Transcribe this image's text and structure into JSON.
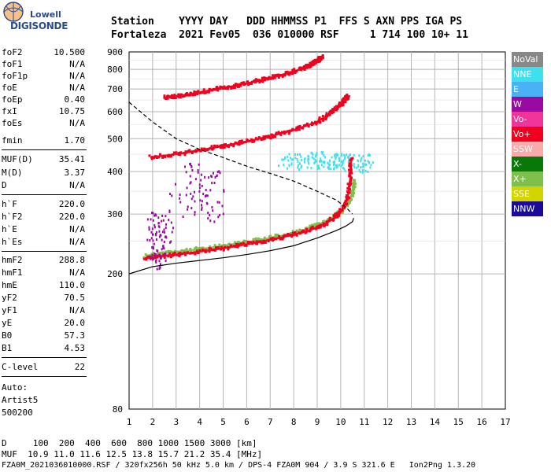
{
  "logo": {
    "line1": "Lowell",
    "line2": "DIGISONDE"
  },
  "header": {
    "line1": "Station    YYYY DAY   DDD HHMMSS P1  FFS S AXN PPS IGA PS",
    "line2": "Fortaleza  2021 Fev05  036 010000 RSF     1 714 100 10+ 11"
  },
  "params": {
    "group1": [
      {
        "k": "foF2",
        "v": "10.500"
      },
      {
        "k": "foF1",
        "v": "N/A"
      },
      {
        "k": "foF1p",
        "v": "N/A"
      },
      {
        "k": "foE",
        "v": "N/A"
      },
      {
        "k": "foEp",
        "v": "0.40"
      },
      {
        "k": "fxI",
        "v": "10.75"
      },
      {
        "k": "foEs",
        "v": "N/A"
      },
      {
        "k": "fmin",
        "v": "1.70"
      }
    ],
    "group2": [
      {
        "k": "MUF(D)",
        "v": "35.41"
      },
      {
        "k": "M(D)",
        "v": "3.37"
      },
      {
        "k": "D",
        "v": "N/A"
      }
    ],
    "group3": [
      {
        "k": "h`F",
        "v": "220.0"
      },
      {
        "k": "h`F2",
        "v": "220.0"
      },
      {
        "k": "h`E",
        "v": "N/A"
      },
      {
        "k": "h`Es",
        "v": "N/A"
      }
    ],
    "group4": [
      {
        "k": "hmF2",
        "v": "288.8"
      },
      {
        "k": "hmF1",
        "v": "N/A"
      },
      {
        "k": "hmE",
        "v": "110.0"
      },
      {
        "k": "yF2",
        "v": "70.5"
      },
      {
        "k": "yF1",
        "v": "N/A"
      },
      {
        "k": "yE",
        "v": "20.0"
      },
      {
        "k": "B0",
        "v": "57.3"
      },
      {
        "k": "B1",
        "v": "4.53"
      }
    ],
    "clevel": {
      "k": "C-level",
      "v": "22"
    },
    "auto": [
      "Auto:",
      "Artist5",
      "500200"
    ]
  },
  "legend": [
    {
      "label": "NoVal",
      "color": "#888888"
    },
    {
      "label": "NNE",
      "color": "#3ee0f0"
    },
    {
      "label": "E",
      "color": "#49b2f5"
    },
    {
      "label": "W",
      "color": "#9a0aa2"
    },
    {
      "label": "Vo-",
      "color": "#f0349a"
    },
    {
      "label": "Vo+",
      "color": "#f0001e"
    },
    {
      "label": "SSW",
      "color": "#f7abab"
    },
    {
      "label": "X-",
      "color": "#087808"
    },
    {
      "label": "X+",
      "color": "#7fbf4c"
    },
    {
      "label": "SSE",
      "color": "#d4d400"
    },
    {
      "label": "NNW",
      "color": "#1a0a9a"
    }
  ],
  "bottom": {
    "line1": "D     100  200  400  600  800 1000 1500 3000 [km]",
    "line2": "MUF  10.9 11.0 11.6 12.5 13.8 15.7 21.2 35.4 [MHz]",
    "line3": "FZA0M_2021036010000.RSF / 320fx256h 50 kHz 5.0 km / DPS-4 FZA0M 904 / 3.9 S 321.6 E   Ion2Png 1.3.20"
  },
  "chart_data": {
    "type": "scatter",
    "title": "",
    "xlabel": "",
    "ylabel": "",
    "xlim": [
      1,
      17
    ],
    "ylim": [
      80,
      900
    ],
    "x_ticks": [
      1,
      2,
      3,
      4,
      5,
      6,
      7,
      8,
      9,
      10,
      11,
      12,
      13,
      14,
      15,
      16,
      17
    ],
    "y_ticks": [
      80,
      200,
      300,
      400,
      500,
      600,
      700,
      800,
      900
    ],
    "y_scale": "log",
    "grid": true,
    "series": [
      {
        "name": "X+",
        "color": "#7fbf4c",
        "kind": "trace",
        "x": [
          1.7,
          2.5,
          3.5,
          4.5,
          5.5,
          6.5,
          7.5,
          8.5,
          9.3,
          9.9,
          10.3,
          10.5,
          10.6
        ],
        "y": [
          226,
          230,
          234,
          239,
          245,
          251,
          259,
          270,
          283,
          300,
          320,
          345,
          375
        ]
      },
      {
        "name": "Vo+",
        "color": "#f0001e",
        "kind": "trace",
        "x": [
          1.7,
          2.5,
          3.5,
          4.5,
          5.5,
          6.5,
          7.5,
          8.5,
          9.3,
          9.8,
          10.1,
          10.3,
          10.4,
          10.45
        ],
        "y": [
          222,
          226,
          230,
          235,
          241,
          248,
          256,
          266,
          279,
          295,
          312,
          335,
          380,
          440
        ]
      },
      {
        "name": "Vo+",
        "color": "#f0001e",
        "kind": "trace",
        "x": [
          1.9,
          3,
          4,
          5,
          6,
          7,
          8,
          9,
          9.6,
          10,
          10.2,
          10.3
        ],
        "y": [
          440,
          450,
          462,
          476,
          490,
          508,
          530,
          560,
          595,
          630,
          655,
          665
        ]
      },
      {
        "name": "Vo+",
        "color": "#f0001e",
        "kind": "trace",
        "x": [
          2.5,
          3.5,
          4.5,
          5.5,
          6.5,
          7.5,
          8.3,
          8.8,
          9.1,
          9.2
        ],
        "y": [
          660,
          675,
          695,
          715,
          740,
          770,
          800,
          830,
          855,
          870
        ]
      },
      {
        "name": "NNE",
        "color": "#3ee0f0",
        "kind": "cloud",
        "x": [
          7.5,
          8,
          8.5,
          9,
          9.5,
          10,
          10.5,
          11,
          11.3
        ],
        "y": [
          420,
          425,
          430,
          432,
          430,
          428,
          425,
          420,
          430
        ]
      },
      {
        "name": "W",
        "color": "#9a0aa2",
        "kind": "cloud",
        "x": [
          1.9,
          2.1,
          2.3,
          2.5,
          3.5,
          4,
          4.5,
          5
        ],
        "y": [
          250,
          255,
          245,
          260,
          360,
          350,
          340,
          330
        ]
      }
    ],
    "model_profile": {
      "name": "",
      "style": "solid",
      "color": "#000000",
      "x": [
        1,
        2,
        3,
        4,
        5,
        6,
        7,
        8,
        9,
        9.8,
        10.2,
        10.5,
        10.55
      ],
      "y": [
        200,
        210,
        215,
        219,
        223,
        228,
        234,
        242,
        255,
        268,
        276,
        285,
        292
      ]
    },
    "muf_curve": {
      "name": "",
      "style": "dashed",
      "color": "#000000",
      "x": [
        1,
        2,
        3,
        4,
        5,
        6,
        7,
        8,
        9,
        9.8,
        10.2,
        10.5
      ],
      "y": [
        640,
        560,
        500,
        465,
        440,
        415,
        395,
        375,
        350,
        330,
        315,
        300
      ]
    }
  }
}
